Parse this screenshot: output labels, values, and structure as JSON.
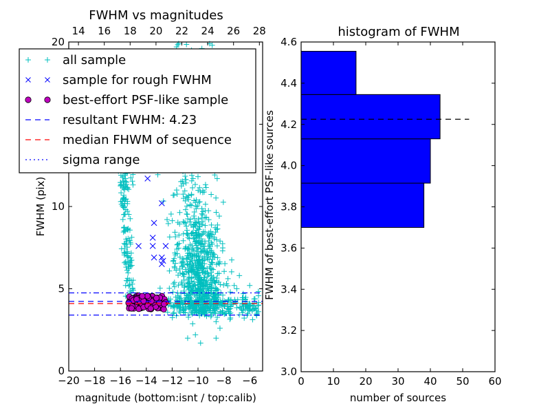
{
  "chart_data": [
    {
      "type": "scatter",
      "title": "FWHM vs magnitudes",
      "xlabel": "magnitude (bottom:isnt / top:calib)",
      "ylabel": "FWHM (pix)",
      "xlim": [
        -20,
        -5
      ],
      "ylim": [
        0,
        20
      ],
      "x_ticks": [
        "−20",
        "−18",
        "−16",
        "−14",
        "−12",
        "−10",
        "−8",
        "−6"
      ],
      "x_tick_values": [
        -20,
        -18,
        -16,
        -14,
        -12,
        -10,
        -8,
        -6
      ],
      "top_x_ticks": [
        "14",
        "16",
        "18",
        "20",
        "22",
        "24",
        "26",
        "28"
      ],
      "top_x_tick_values": [
        14,
        16,
        18,
        20,
        22,
        24,
        26,
        28
      ],
      "top_xlim": [
        13.25,
        28.25
      ],
      "y_ticks": [
        "0",
        "5",
        "10",
        "15",
        "20"
      ],
      "y_tick_values": [
        0,
        5,
        10,
        15,
        20
      ],
      "legend": {
        "placement": "upper-left",
        "entries": [
          {
            "label": "all sample",
            "marker": "plus",
            "color": "#00bfbf"
          },
          {
            "label": "sample for rough FWHM",
            "marker": "x",
            "color": "#0000ff"
          },
          {
            "label": "best-effort PSF-like sample",
            "marker": "circle",
            "color": "#bf00bf"
          },
          {
            "label": "resultant FWHM: 4.23",
            "marker": "dashed",
            "color": "#0000ff"
          },
          {
            "label": "median FHWM of sequence",
            "marker": "dashed",
            "color": "#ff0000"
          },
          {
            "label": "sigma range",
            "marker": "dashdot",
            "color": "#0000ff"
          }
        ]
      },
      "hlines": [
        {
          "name": "resultant",
          "y": 4.23,
          "style": "dashed",
          "color": "#0000ff"
        },
        {
          "name": "median",
          "y": 4.1,
          "style": "dashed",
          "color": "#ff0000"
        },
        {
          "name": "sigma-upper",
          "y": 4.75,
          "style": "dashdot",
          "color": "#0000ff"
        },
        {
          "name": "sigma-lower",
          "y": 3.4,
          "style": "dashdot",
          "color": "#0000ff"
        }
      ],
      "series": [
        {
          "name": "sample for rough FWHM",
          "marker": "x",
          "color": "#0000ff",
          "points": [
            [
              -13.9,
              11.7
            ],
            [
              -12.8,
              10.2
            ],
            [
              -13.4,
              9.0
            ],
            [
              -13.5,
              8.1
            ],
            [
              -14.6,
              7.6
            ],
            [
              -13.5,
              7.6
            ],
            [
              -12.5,
              7.6
            ],
            [
              -13.4,
              6.9
            ],
            [
              -12.8,
              6.9
            ],
            [
              -12.7,
              6.7
            ],
            [
              -12.8,
              6.5
            ]
          ]
        }
      ],
      "generated_series": [
        {
          "name": "all sample",
          "marker": "plus",
          "color": "#00bfbf",
          "description_ranges": "stellar branch x -15.9..-15, y 4.5..13; faint cloud x -12..-5.5, y 3..20; low outliers y 1.5..3"
        },
        {
          "name": "best-effort PSF-like sample",
          "marker": "circle",
          "color": "#bf00bf",
          "x_range": [
            -15.5,
            -12.4
          ],
          "y_range": [
            3.7,
            4.65
          ]
        }
      ]
    },
    {
      "type": "bar",
      "orientation": "horizontal",
      "title": "histogram of FWHM",
      "xlabel": "number of sources",
      "ylabel": "FWHM of best-effort PSF-like sources",
      "xlim": [
        0,
        60
      ],
      "ylim": [
        3.0,
        4.6
      ],
      "x_ticks": [
        "0",
        "10",
        "20",
        "30",
        "40",
        "50",
        "60"
      ],
      "x_tick_values": [
        0,
        10,
        20,
        30,
        40,
        50,
        60
      ],
      "y_ticks": [
        "3.0",
        "3.2",
        "3.4",
        "3.6",
        "3.8",
        "4.0",
        "4.2",
        "4.4",
        "4.6"
      ],
      "y_tick_values": [
        3.0,
        3.2,
        3.4,
        3.6,
        3.8,
        4.0,
        4.2,
        4.4,
        4.6
      ],
      "bins": [
        {
          "low": 3.7,
          "high": 3.915,
          "count": 38
        },
        {
          "low": 3.915,
          "high": 4.13,
          "count": 40
        },
        {
          "low": 4.13,
          "high": 4.345,
          "count": 43
        },
        {
          "low": 4.345,
          "high": 4.555,
          "count": 17
        }
      ],
      "bar_color": "#0000ff",
      "hline": {
        "y": 4.225,
        "x_max": 52,
        "style": "dashed",
        "color": "#000000"
      }
    }
  ]
}
